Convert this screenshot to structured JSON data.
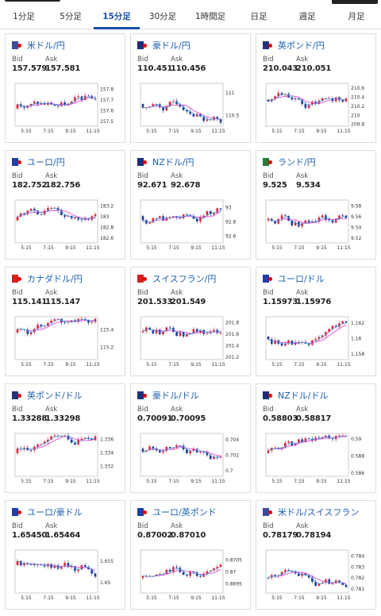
{
  "tabs": [
    {
      "label": "1分足",
      "active": false
    },
    {
      "label": "5分足",
      "active": false
    },
    {
      "label": "15分足",
      "active": true
    },
    {
      "label": "30分足",
      "active": false
    },
    {
      "label": "1時間足",
      "active": false
    },
    {
      "label": "日足",
      "active": false
    },
    {
      "label": "週足",
      "active": false
    },
    {
      "label": "月足",
      "active": false
    }
  ],
  "quote_labels": {
    "bid": "Bid",
    "ask": "Ask"
  },
  "colors": {
    "up": "#e0223a",
    "down": "#1f3a93",
    "ma": "#d63ad1",
    "ma2": "#4aa8d8",
    "link": "#1a5fb0",
    "accent": "#1a4fa0"
  },
  "pairs": [
    {
      "name": "米ドル/円",
      "flag": "us-jp-flag-icon",
      "bid": "157.579",
      "ask": "157.581",
      "chart_data": {
        "type": "candlestick",
        "x_ticks": [
          "5:15",
          "7:15",
          "9:15",
          "11:15"
        ],
        "y_ticks": [
          "157.8",
          "157.7",
          "157.6",
          "157.5"
        ],
        "ylim": [
          157.45,
          157.85
        ],
        "seed": 3
      }
    },
    {
      "name": "豪ドル/円",
      "flag": "au-jp-flag-icon",
      "bid": "110.451",
      "ask": "110.456",
      "chart_data": {
        "type": "candlestick",
        "x_ticks": [
          "5:15",
          "7:15",
          "9:15",
          "11:15"
        ],
        "y_ticks": [
          "111",
          "110.5"
        ],
        "ylim": [
          110.25,
          111.2
        ],
        "seed": 7
      }
    },
    {
      "name": "英ポンド/円",
      "flag": "gb-jp-flag-icon",
      "bid": "210.043",
      "ask": "210.051",
      "chart_data": {
        "type": "candlestick",
        "x_ticks": [
          "5:15",
          "7:15",
          "9:15",
          "11:15"
        ],
        "y_ticks": [
          "210.6",
          "210.4",
          "210.2",
          "210",
          "209.8"
        ],
        "ylim": [
          209.75,
          210.7
        ],
        "seed": 11
      }
    },
    {
      "name": "ユーロ/円",
      "flag": "eu-jp-flag-icon",
      "bid": "182.752",
      "ask": "182.756",
      "chart_data": {
        "type": "candlestick",
        "x_ticks": [
          "5:15",
          "7:15",
          "9:15",
          "11:15"
        ],
        "y_ticks": [
          "183.2",
          "183",
          "182.8",
          "182.6"
        ],
        "ylim": [
          182.5,
          183.3
        ],
        "seed": 13
      }
    },
    {
      "name": "NZドル/円",
      "flag": "nz-jp-flag-icon",
      "bid": "92.671",
      "ask": "92.678",
      "chart_data": {
        "type": "candlestick",
        "x_ticks": [
          "5:15",
          "7:15",
          "9:15",
          "11:15"
        ],
        "y_ticks": [
          "93",
          "92.8",
          "92.6"
        ],
        "ylim": [
          92.5,
          93.1
        ],
        "seed": 17
      }
    },
    {
      "name": "ランド/円",
      "flag": "za-jp-flag-icon",
      "bid": "9.525",
      "ask": "9.534",
      "chart_data": {
        "type": "candlestick",
        "x_ticks": [
          "5:15",
          "7:15",
          "9:15",
          "11:15"
        ],
        "y_ticks": [
          "9.58",
          "9.56",
          "9.54",
          "9.52"
        ],
        "ylim": [
          9.51,
          9.59
        ],
        "seed": 19
      }
    },
    {
      "name": "カナダドル/円",
      "flag": "ca-jp-flag-icon",
      "bid": "115.141",
      "ask": "115.147",
      "chart_data": {
        "type": "candlestick",
        "x_ticks": [
          "5:15",
          "7:15",
          "9:15",
          "11:15"
        ],
        "y_ticks": [
          "115.4",
          "115.2"
        ],
        "ylim": [
          115.05,
          115.55
        ],
        "seed": 23
      }
    },
    {
      "name": "スイスフラン/円",
      "flag": "ch-jp-flag-icon",
      "bid": "201.533",
      "ask": "201.549",
      "chart_data": {
        "type": "candlestick",
        "x_ticks": [
          "5:15",
          "7:15",
          "9:15",
          "11:15"
        ],
        "y_ticks": [
          "201.8",
          "201.6",
          "201.4",
          "201.2"
        ],
        "ylim": [
          201.15,
          201.9
        ],
        "seed": 29
      }
    },
    {
      "name": "ユーロ/ドル",
      "flag": "eu-us-flag-icon",
      "bid": "1.15973",
      "ask": "1.15976",
      "chart_data": {
        "type": "candlestick",
        "x_ticks": [
          "5:15",
          "7:15",
          "9:15",
          "11:15"
        ],
        "y_ticks": [
          "1.162",
          "1.16",
          "1.158"
        ],
        "ylim": [
          1.1572,
          1.1628
        ],
        "seed": 31
      }
    },
    {
      "name": "英ポンド/ドル",
      "flag": "gb-us-flag-icon",
      "bid": "1.33288",
      "ask": "1.33298",
      "chart_data": {
        "type": "candlestick",
        "x_ticks": [
          "5:15",
          "7:15",
          "9:15",
          "11:15"
        ],
        "y_ticks": [
          "1.336",
          "1.334",
          "1.332"
        ],
        "ylim": [
          1.3305,
          1.3368
        ],
        "seed": 37
      }
    },
    {
      "name": "豪ドル/ドル",
      "flag": "au-us-flag-icon",
      "bid": "0.70091",
      "ask": "0.70095",
      "chart_data": {
        "type": "candlestick",
        "x_ticks": [
          "5:15",
          "7:15",
          "9:15",
          "11:15"
        ],
        "y_ticks": [
          "0.704",
          "0.702",
          "0.7"
        ],
        "ylim": [
          0.6992,
          0.7048
        ],
        "seed": 41
      }
    },
    {
      "name": "NZドル/ドル",
      "flag": "nz-us-flag-icon",
      "bid": "0.58803",
      "ask": "0.58817",
      "chart_data": {
        "type": "candlestick",
        "x_ticks": [
          "5:15",
          "7:15",
          "9:15",
          "11:15"
        ],
        "y_ticks": [
          "0.59",
          "0.588",
          "0.586"
        ],
        "ylim": [
          0.5856,
          0.5906
        ],
        "seed": 43
      }
    },
    {
      "name": "ユーロ/豪ドル",
      "flag": "eu-au-flag-icon",
      "bid": "1.65450",
      "ask": "1.65464",
      "chart_data": {
        "type": "candlestick",
        "x_ticks": [
          "5:15",
          "7:15",
          "9:15",
          "11:15"
        ],
        "y_ticks": [
          "1.655",
          "1.65"
        ],
        "ylim": [
          1.6475,
          1.6575
        ],
        "seed": 47
      }
    },
    {
      "name": "ユーロ/英ポンド",
      "flag": "eu-gb-flag-icon",
      "bid": "0.87002",
      "ask": "0.87010",
      "chart_data": {
        "type": "candlestick",
        "x_ticks": [
          "5:15",
          "7:15",
          "9:15",
          "11:15"
        ],
        "y_ticks": [
          "0.8705",
          "0.87",
          "0.8695"
        ],
        "ylim": [
          0.8691,
          0.8709
        ],
        "seed": 53
      }
    },
    {
      "name": "米ドル/スイスフラン",
      "flag": "us-ch-flag-icon",
      "bid": "0.78179",
      "ask": "0.78194",
      "chart_data": {
        "type": "candlestick",
        "x_ticks": [
          "5:15",
          "7:15",
          "9:15",
          "11:15"
        ],
        "y_ticks": [
          "0.784",
          "0.783",
          "0.782",
          "0.781"
        ],
        "ylim": [
          0.7806,
          0.7845
        ],
        "seed": 59
      }
    }
  ]
}
